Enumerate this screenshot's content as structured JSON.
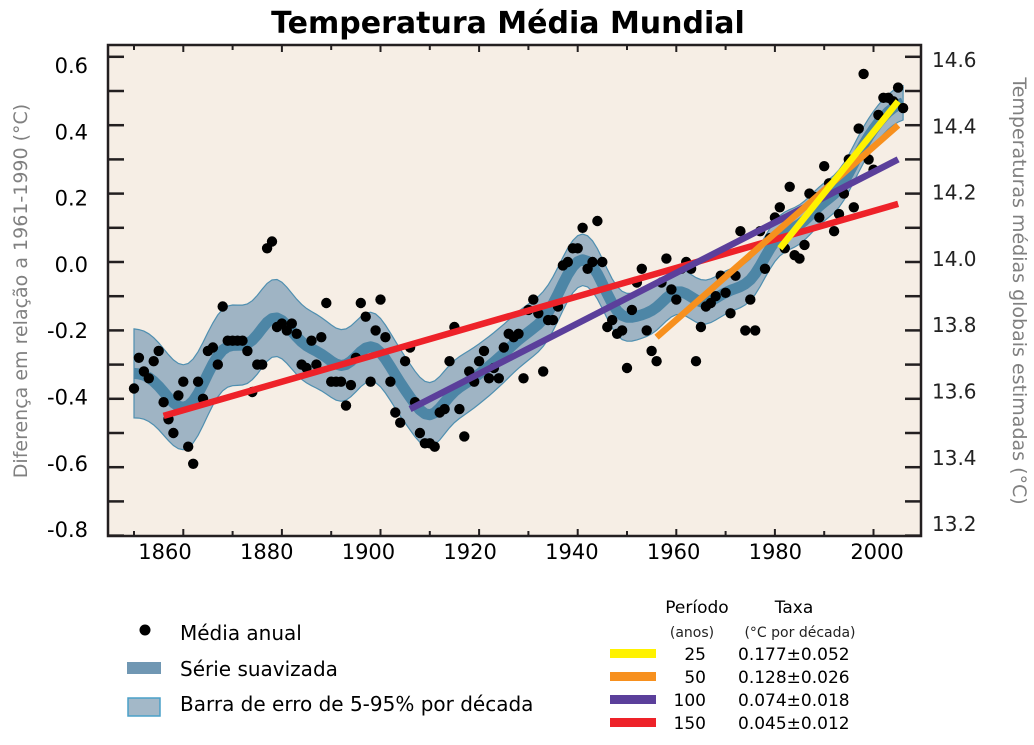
{
  "chart_data": {
    "type": "scatter",
    "title": "Temperatura Média Mundial",
    "ylabel": "Diferença em relação a 1961-1990 (°C)",
    "ylabel_right": "Temperaturas médias globais estimadas (°C)",
    "xlim": [
      1845,
      2010
    ],
    "ylim": [
      -0.8,
      0.63
    ],
    "ylim_right": [
      13.2,
      14.63
    ],
    "x_ticks": [
      1860,
      1880,
      1900,
      1920,
      1940,
      1960,
      1980,
      2000
    ],
    "y_ticks": [
      "0.6",
      "0.4",
      "0.2",
      "0.0",
      "-0.2",
      "-0.4",
      "-0.6",
      "-0.8"
    ],
    "y_ticks_right": [
      "14.6",
      "14.4",
      "14.2",
      "14.0",
      "13.8",
      "13.6",
      "13.4",
      "13.2"
    ],
    "grid": false,
    "annual": {
      "name": "Média anual",
      "start_year": 1850,
      "values": [
        -0.37,
        -0.28,
        -0.32,
        -0.34,
        -0.29,
        -0.26,
        -0.41,
        -0.46,
        -0.5,
        -0.39,
        -0.35,
        -0.54,
        -0.59,
        -0.35,
        -0.4,
        -0.26,
        -0.25,
        -0.3,
        -0.13,
        -0.23,
        -0.23,
        -0.23,
        -0.23,
        -0.26,
        -0.38,
        -0.3,
        -0.3,
        0.04,
        0.06,
        -0.19,
        -0.18,
        -0.2,
        -0.18,
        -0.21,
        -0.3,
        -0.31,
        -0.23,
        -0.3,
        -0.22,
        -0.12,
        -0.35,
        -0.35,
        -0.35,
        -0.42,
        -0.36,
        -0.28,
        -0.12,
        -0.16,
        -0.35,
        -0.2,
        -0.11,
        -0.22,
        -0.35,
        -0.44,
        -0.47,
        -0.29,
        -0.25,
        -0.41,
        -0.5,
        -0.53,
        -0.53,
        -0.54,
        -0.44,
        -0.43,
        -0.29,
        -0.19,
        -0.43,
        -0.51,
        -0.32,
        -0.35,
        -0.29,
        -0.26,
        -0.34,
        -0.31,
        -0.34,
        -0.25,
        -0.21,
        -0.22,
        -0.21,
        -0.34,
        -0.14,
        -0.11,
        -0.15,
        -0.32,
        -0.17,
        -0.17,
        -0.13,
        -0.01,
        0.0,
        0.04,
        0.04,
        0.1,
        -0.02,
        0.0,
        0.12,
        0.0,
        -0.19,
        -0.17,
        -0.21,
        -0.2,
        -0.31,
        -0.14,
        -0.06,
        -0.02,
        -0.2,
        -0.26,
        -0.29,
        -0.06,
        0.01,
        -0.08,
        -0.11,
        -0.02,
        0.0,
        -0.02,
        -0.29,
        -0.19,
        -0.13,
        -0.12,
        -0.1,
        -0.04,
        -0.09,
        -0.15,
        -0.04,
        0.09,
        -0.2,
        -0.11,
        -0.2,
        0.09,
        -0.02,
        0.07,
        0.13,
        0.16,
        0.04,
        0.22,
        0.02,
        0.01,
        0.05,
        0.2,
        0.19,
        0.13,
        0.28,
        0.23,
        0.09,
        0.14,
        0.2,
        0.3,
        0.16,
        0.39,
        0.55,
        0.3,
        0.27,
        0.43,
        0.48,
        0.48,
        0.47,
        0.51,
        0.45
      ]
    },
    "smoothed": {
      "name": "Série suavizada",
      "color": "#4d86a6"
    },
    "error_band": {
      "name": "Barra de erro de 5-95% por  década",
      "color": "#9fb4c4",
      "edge_color": "#4f8fb0",
      "half_width": [
        [
          1850,
          0.13
        ],
        [
          1900,
          0.1
        ],
        [
          1950,
          0.07
        ],
        [
          2006,
          0.05
        ]
      ]
    },
    "trends": [
      {
        "period": "25",
        "rate": "0.177±0.052",
        "color": "#fff200",
        "x": [
          1981,
          2005
        ],
        "y": [
          0.04,
          0.47
        ]
      },
      {
        "period": "50",
        "rate": "0.128±0.026",
        "color": "#f7901e",
        "x": [
          1956,
          2005
        ],
        "y": [
          -0.22,
          0.4
        ]
      },
      {
        "period": "100",
        "rate": "0.074±0.018",
        "color": "#5b3f9b",
        "x": [
          1906,
          2005
        ],
        "y": [
          -0.43,
          0.3
        ]
      },
      {
        "period": "150",
        "rate": "0.045±0.012",
        "color": "#ee2229",
        "x": [
          1856,
          2005
        ],
        "y": [
          -0.45,
          0.17
        ]
      }
    ],
    "legend_placement": "bottom",
    "colors": {
      "plot_background": "#f6eee5",
      "points": "#000000",
      "axis_label": "#808080"
    }
  },
  "legend": {
    "annual_label": "Média anual",
    "smoothed_label": "Série suavizada",
    "band_label": "Barra de erro de 5-95% por  década",
    "table_header_period": "Período",
    "table_header_rate": "Taxa",
    "table_sub_period": "(anos)",
    "table_sub_rate": "(°C por década)"
  }
}
